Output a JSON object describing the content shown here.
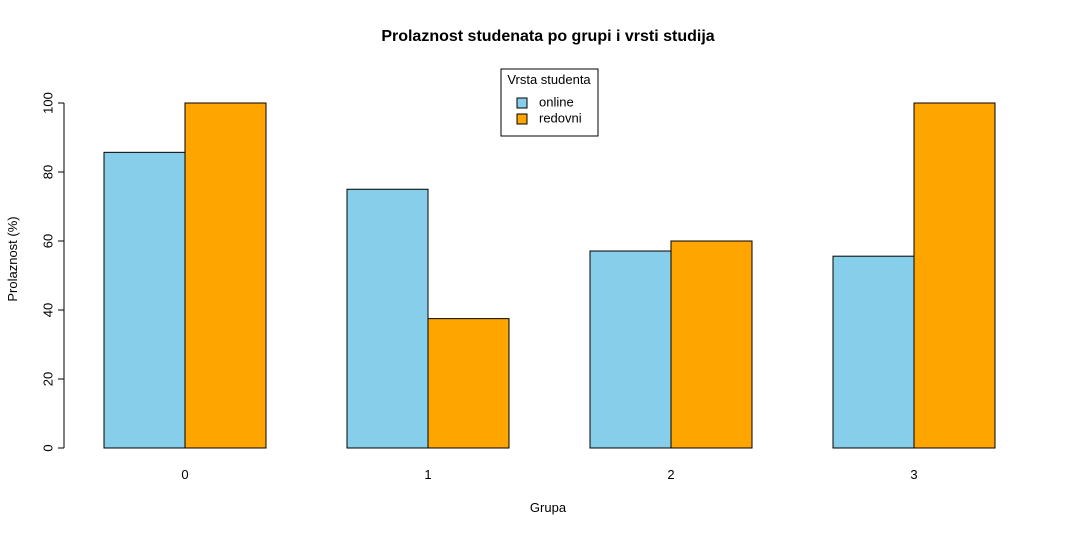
{
  "chart_data": {
    "type": "bar",
    "title": "Prolaznost studenata po grupi i vrsti studija",
    "xlabel": "Grupa",
    "ylabel": "Prolaznost (%)",
    "categories": [
      "0",
      "1",
      "2",
      "3"
    ],
    "series": [
      {
        "name": "online",
        "values": [
          85.7,
          75.0,
          57.1,
          55.6
        ],
        "color": "#87CEEB"
      },
      {
        "name": "redovni",
        "values": [
          100.0,
          37.5,
          60.0,
          100.0
        ],
        "color": "#FFA500"
      }
    ],
    "ylim": [
      0,
      100
    ],
    "yticks": [
      0,
      20,
      40,
      60,
      80,
      100
    ],
    "legend": {
      "title": "Vrsta studenta",
      "position": "top-center"
    },
    "grid": false
  }
}
